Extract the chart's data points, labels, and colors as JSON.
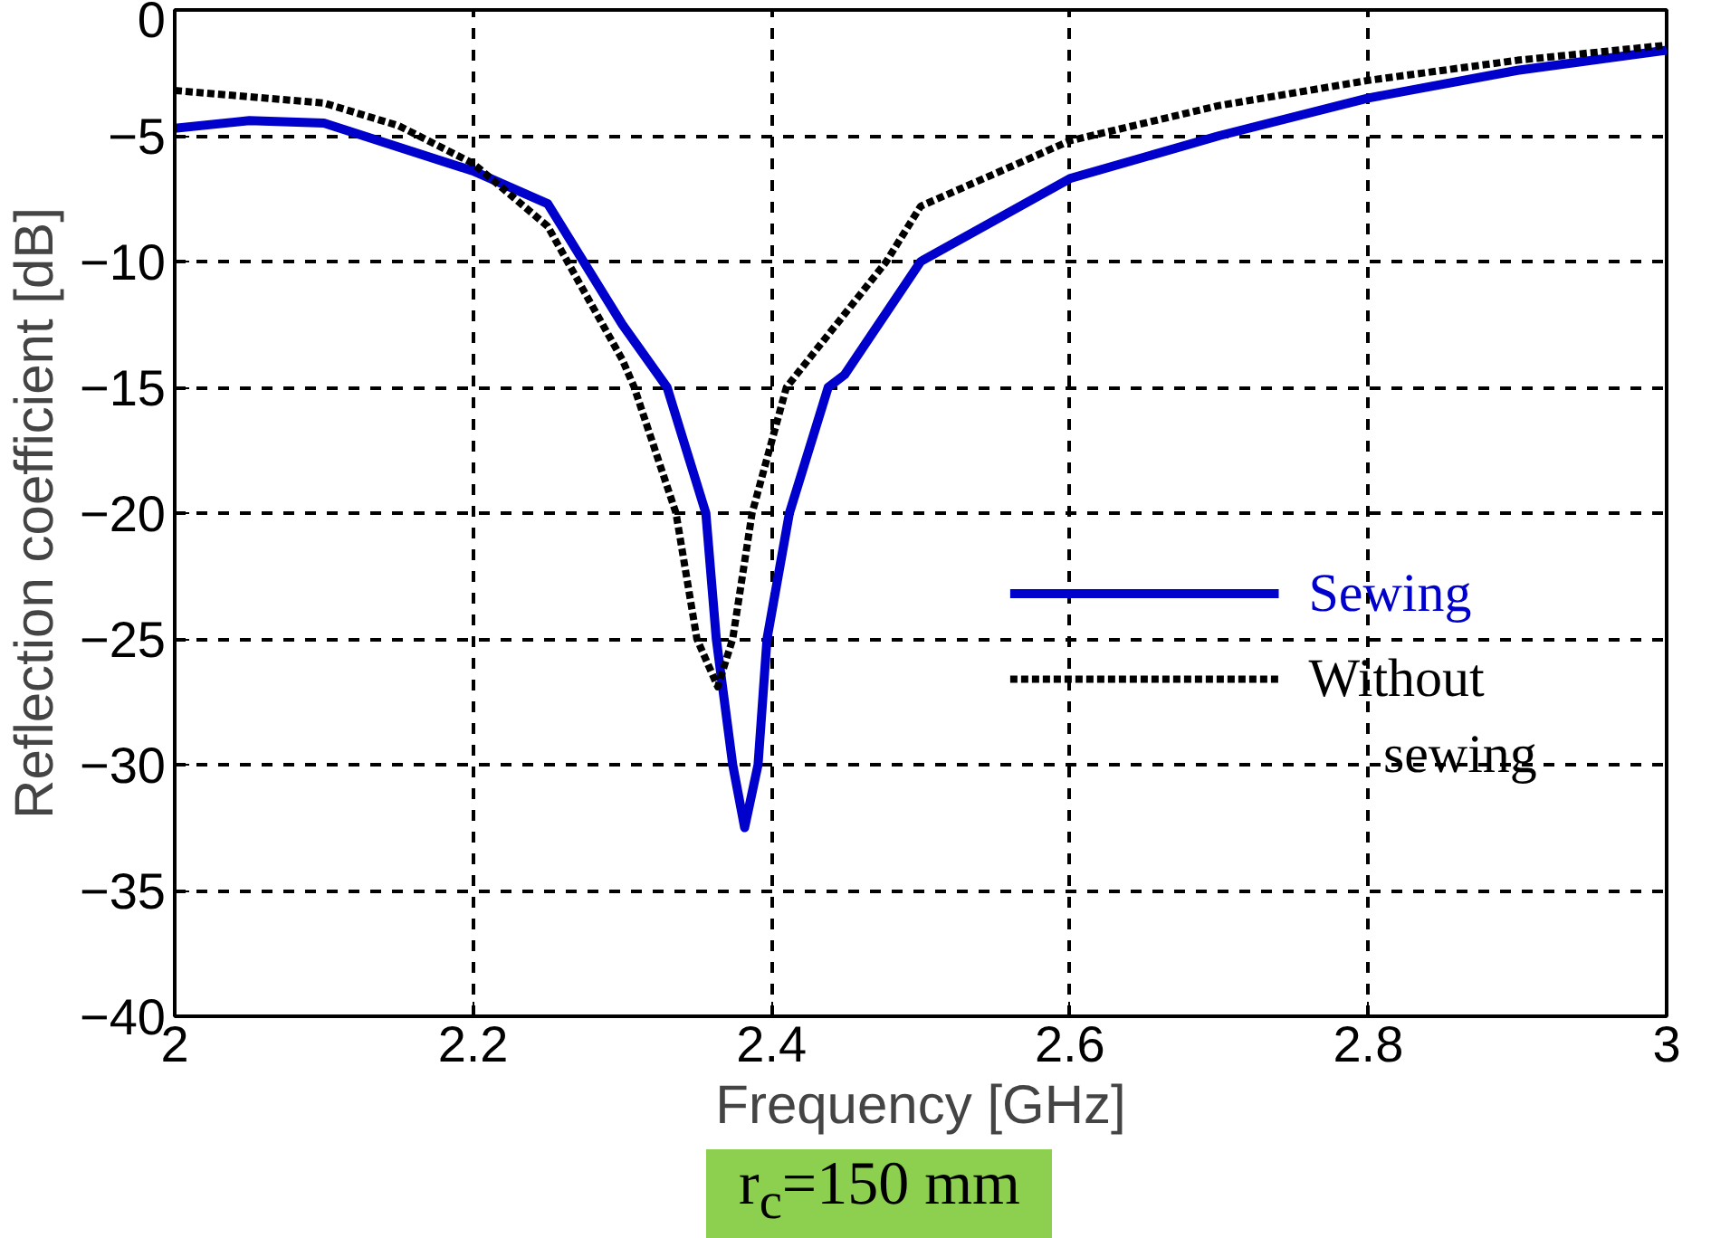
{
  "chart_data": {
    "type": "line",
    "xlabel": "Frequency [GHz]",
    "ylabel": "Reflection coefficient [dB]",
    "xlim": [
      2,
      3
    ],
    "xticks": [
      2,
      2.2,
      2.4,
      2.6,
      2.8,
      3
    ],
    "ylim": [
      -40,
      0
    ],
    "yticks": [
      -40,
      -35,
      -30,
      -25,
      -20,
      -15,
      -10,
      -5,
      0
    ],
    "grid": true,
    "legend": "right",
    "annotations": [
      "r$_{c}$=150 mm"
    ],
    "series": [
      {
        "name": "Sewing",
        "color": "#0000cc",
        "line_style": "solid",
        "x": [
          2,
          2.05,
          2.1,
          2.2,
          2.25,
          2.3,
          2.33,
          2.356,
          2.363,
          2.374,
          2.382,
          2.391,
          2.397,
          2.412,
          2.438,
          2.449,
          2.5,
          2.6,
          2.7,
          2.8,
          2.9,
          3
        ],
        "values": [
          -4.7,
          -4.4,
          -4.5,
          -6.4,
          -7.7,
          -12.5,
          -15,
          -20,
          -25,
          -30,
          -32.5,
          -30,
          -25,
          -20,
          -15,
          -14.5,
          -10,
          -6.7,
          -5.0,
          -3.5,
          -2.4,
          -1.6
        ]
      },
      {
        "name": "Without sewing",
        "color": "#000000",
        "line_style": "dashed",
        "x": [
          2,
          2.1,
          2.15,
          2.2,
          2.25,
          2.3,
          2.308,
          2.336,
          2.35,
          2.364,
          2.374,
          2.387,
          2.41,
          2.477,
          2.5,
          2.6,
          2.7,
          2.8,
          2.9,
          3
        ],
        "values": [
          -3.2,
          -3.7,
          -4.6,
          -6.1,
          -8.6,
          -13.9,
          -15,
          -20,
          -25,
          -26.9,
          -25,
          -20,
          -15,
          -10,
          -7.8,
          -5.2,
          -3.8,
          -2.8,
          -2.0,
          -1.4
        ]
      }
    ]
  }
}
